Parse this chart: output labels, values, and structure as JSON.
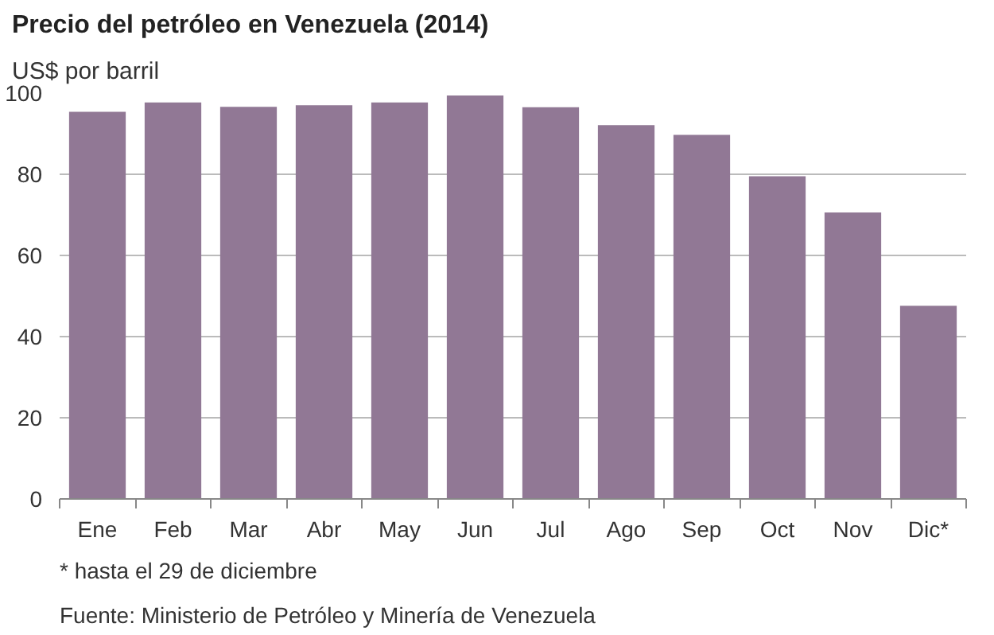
{
  "chart_data": {
    "type": "bar",
    "title": "Precio del petróleo en Venezuela (2014)",
    "ylabel": "US$ por barril",
    "categories": [
      "Ene",
      "Feb",
      "Mar",
      "Abr",
      "May",
      "Jun",
      "Jul",
      "Ago",
      "Sep",
      "Oct",
      "Nov",
      "Dic*"
    ],
    "values": [
      95.4,
      97.7,
      96.6,
      97.0,
      97.7,
      99.4,
      96.5,
      92.1,
      89.7,
      79.5,
      70.6,
      47.6
    ],
    "color": "#917895",
    "ylim": [
      0,
      100
    ],
    "yticks": [
      0,
      20,
      40,
      60,
      80,
      100
    ],
    "grid": "y",
    "annotations": [
      "* hasta el 29 de diciembre",
      "Fuente: Ministerio de Petróleo y Minería de Venezuela"
    ]
  }
}
